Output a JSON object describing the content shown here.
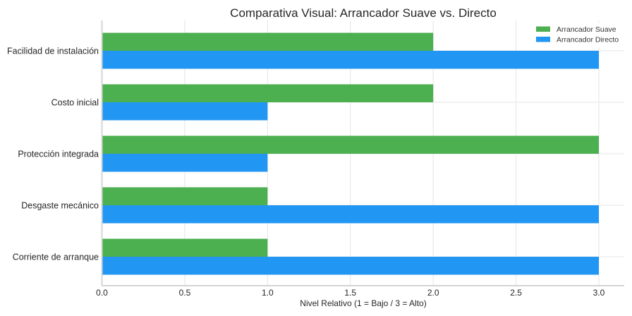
{
  "chart_data": {
    "type": "bar",
    "orientation": "horizontal",
    "title": "Comparativa Visual: Arrancador Suave vs. Directo",
    "xlabel": "Nivel Relativo (1 = Bajo / 3 = Alto)",
    "ylabel": "",
    "xlim": [
      0,
      3.15
    ],
    "xticks": [
      0.0,
      0.5,
      1.0,
      1.5,
      2.0,
      2.5,
      3.0
    ],
    "xtick_labels": [
      "0.0",
      "0.5",
      "1.0",
      "1.5",
      "2.0",
      "2.5",
      "3.0"
    ],
    "grid": true,
    "legend_position": "top-right",
    "categories": [
      "Facilidad de instalación",
      "Costo inicial",
      "Protección integrada",
      "Desgaste mecánico",
      "Corriente de arranque"
    ],
    "series": [
      {
        "name": "Arrancador Suave",
        "color": "#4caf50",
        "values": [
          2,
          2,
          3,
          1,
          1
        ]
      },
      {
        "name": "Arrancador Directo",
        "color": "#2196f3",
        "values": [
          3,
          1,
          1,
          3,
          3
        ]
      }
    ]
  }
}
